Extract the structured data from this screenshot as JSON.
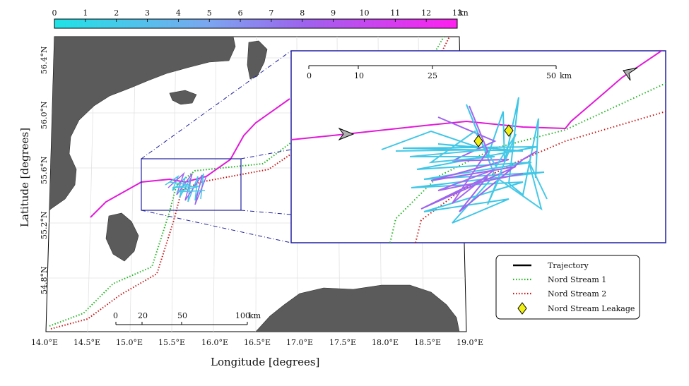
{
  "colorbar": {
    "ticks": [
      "0",
      "1",
      "2",
      "3",
      "4",
      "5",
      "6",
      "7",
      "8",
      "9",
      "10",
      "11",
      "12",
      "13"
    ],
    "unit": "kn",
    "colors": [
      "#1ee3e6",
      "#7aa7f0",
      "#9d63ee",
      "#ff1ff0"
    ]
  },
  "axes": {
    "xlabel": "Longitude [degrees]",
    "ylabel": "Latitude [degrees]",
    "xticks": [
      "14.0°E",
      "14.5°E",
      "15.0°E",
      "15.5°E",
      "16.0°E",
      "16.5°E",
      "17.0°E",
      "17.5°E",
      "18.0°E",
      "18.5°E",
      "19.0°E"
    ],
    "yticks": [
      "56.4°N",
      "56.0°N",
      "55.6°N",
      "55.2°N",
      "54.8°N"
    ]
  },
  "main_scalebar": {
    "labels": [
      "0",
      "20",
      "50",
      "100"
    ],
    "unit": "km"
  },
  "inset_scalebar": {
    "labels": [
      "0",
      "10",
      "25",
      "50"
    ],
    "unit": "km"
  },
  "legend": {
    "items": [
      {
        "label": "Trajectory",
        "style": "solid",
        "color": "#000000"
      },
      {
        "label": "Nord Stream 1",
        "style": "dotted",
        "color": "#1fb51f"
      },
      {
        "label": "Nord Stream 2",
        "style": "dotted",
        "color": "#c81414"
      },
      {
        "label": "Nord Stream Leakage",
        "style": "diamond",
        "color": "#f0f014"
      }
    ]
  },
  "colors": {
    "land": "#5b5b5b",
    "frame": "#2020a0",
    "pipeline1": "#1fb51f",
    "pipeline2": "#c81414",
    "trajectory_transit": "#e219d8",
    "trajectory_survey": "#3fc6e6",
    "leakage_marker": "#f0f014"
  }
}
